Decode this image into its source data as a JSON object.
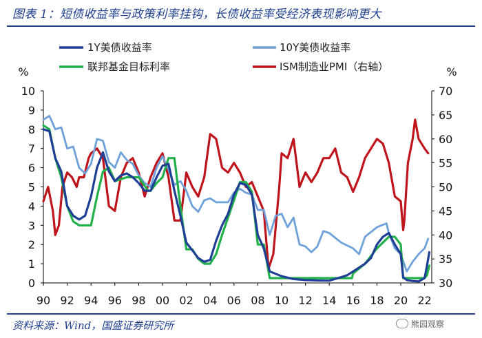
{
  "header": {
    "title": "图表 1：短债收益率与政策利率挂钩，长债收益率受经济表现影响更大"
  },
  "footer": {
    "source": "资料来源：Wind，国盛证券研究所",
    "watermark": "熊园观察"
  },
  "colors": {
    "y1": "#1e3f95",
    "y10": "#6ea1d9",
    "policy": "#22b04a",
    "ism": "#c0141c",
    "brand": "#1f3f8f"
  },
  "chart_data": {
    "type": "line",
    "x_tick_labels": [
      "90",
      "92",
      "94",
      "96",
      "98",
      "00",
      "02",
      "04",
      "06",
      "08",
      "10",
      "12",
      "14",
      "16",
      "18",
      "20",
      "22"
    ],
    "x_range": [
      1990,
      2022.6
    ],
    "left_axis": {
      "label": "%",
      "ticks": [
        "0",
        "1",
        "2",
        "3",
        "4",
        "5",
        "6",
        "7",
        "8",
        "9",
        "10"
      ],
      "ylim": [
        0,
        10
      ]
    },
    "right_axis": {
      "label": "%",
      "ticks": [
        "30",
        "35",
        "40",
        "45",
        "50",
        "55",
        "60",
        "65",
        "70"
      ],
      "ylim": [
        30,
        70
      ]
    },
    "legend": {
      "y1": "1Y美债收益率",
      "y10": "10Y美债收益率",
      "policy": "联邦基金目标利率",
      "ism": "ISM制造业PMI（右轴）"
    },
    "series": [
      {
        "key": "y1",
        "name": "1Y美债收益率",
        "axis": "left",
        "width": 3.2,
        "x": [
          1990,
          1990.5,
          1991,
          1991.5,
          1992,
          1992.5,
          1993,
          1993.5,
          1994,
          1994.5,
          1995,
          1995.5,
          1996,
          1996.5,
          1997,
          1997.5,
          1998,
          1998.5,
          1999,
          1999.5,
          2000,
          2000.5,
          2001,
          2001.5,
          2002,
          2002.5,
          2003,
          2003.5,
          2004,
          2004.5,
          2005,
          2005.5,
          2006,
          2006.5,
          2007,
          2007.5,
          2008,
          2008.5,
          2009,
          2010,
          2011,
          2012,
          2013,
          2014,
          2015,
          2015.5,
          2016,
          2016.5,
          2017,
          2017.5,
          2018,
          2018.5,
          2019,
          2019.5,
          2020,
          2020.2,
          2020.5,
          2021,
          2021.5,
          2022,
          2022.2,
          2022.4
        ],
        "y": [
          8.0,
          7.9,
          6.5,
          5.8,
          4.0,
          3.5,
          3.3,
          3.5,
          4.5,
          6.0,
          6.8,
          5.8,
          5.3,
          5.6,
          5.7,
          5.5,
          5.2,
          4.8,
          4.8,
          5.5,
          6.1,
          6.2,
          4.8,
          3.5,
          2.1,
          1.7,
          1.3,
          1.1,
          1.2,
          2.2,
          3.0,
          3.6,
          4.6,
          5.2,
          5.1,
          4.6,
          2.5,
          1.8,
          0.6,
          0.35,
          0.2,
          0.15,
          0.13,
          0.12,
          0.3,
          0.4,
          0.6,
          0.8,
          1.0,
          1.3,
          2.0,
          2.4,
          2.6,
          2.0,
          1.5,
          0.3,
          0.15,
          0.1,
          0.08,
          0.25,
          0.9,
          1.6
        ]
      },
      {
        "key": "y10",
        "name": "10Y美债收益率",
        "axis": "left",
        "width": 2.8,
        "x": [
          1990,
          1990.5,
          1991,
          1991.5,
          1992,
          1992.5,
          1993,
          1993.5,
          1994,
          1994.5,
          1995,
          1995.5,
          1996,
          1996.5,
          1997,
          1997.5,
          1998,
          1998.5,
          1999,
          1999.5,
          2000,
          2000.5,
          2001,
          2001.5,
          2002,
          2002.5,
          2003,
          2003.5,
          2004,
          2004.5,
          2005,
          2005.5,
          2006,
          2006.5,
          2007,
          2007.5,
          2008,
          2008.5,
          2009,
          2009.5,
          2010,
          2010.5,
          2011,
          2011.5,
          2012,
          2012.5,
          2013,
          2013.5,
          2014,
          2015,
          2016,
          2016.5,
          2017,
          2018,
          2018.8,
          2019,
          2019.5,
          2020,
          2020.5,
          2021,
          2021.5,
          2022,
          2022.3
        ],
        "y": [
          8.5,
          8.7,
          8.0,
          8.1,
          7.0,
          7.1,
          6.0,
          5.7,
          6.2,
          7.5,
          7.4,
          6.3,
          6.0,
          6.8,
          6.4,
          6.2,
          5.6,
          5.2,
          5.0,
          6.0,
          6.6,
          5.9,
          5.1,
          5.3,
          4.8,
          4.0,
          3.7,
          4.3,
          4.4,
          4.2,
          4.2,
          4.2,
          4.7,
          4.9,
          4.7,
          4.6,
          3.8,
          3.8,
          2.5,
          3.5,
          3.6,
          2.9,
          3.4,
          2.0,
          1.9,
          1.6,
          1.9,
          2.7,
          2.6,
          2.1,
          1.8,
          1.5,
          2.4,
          2.9,
          3.1,
          2.6,
          1.8,
          1.5,
          0.6,
          1.1,
          1.5,
          1.8,
          2.3
        ]
      },
      {
        "key": "policy",
        "name": "联邦基金目标利率",
        "axis": "left",
        "width": 3.2,
        "x": [
          1990,
          1990.5,
          1991,
          1991.5,
          1992,
          1992.5,
          1993,
          1994,
          1994.5,
          1995,
          1995.5,
          1996,
          1997,
          1998,
          1998.8,
          1999,
          1999.5,
          2000,
          2000.5,
          2001,
          2001.5,
          2002,
          2002.5,
          2003,
          2003.5,
          2004,
          2004.5,
          2005,
          2006,
          2006.5,
          2007,
          2007.5,
          2008,
          2008.5,
          2009,
          2010,
          2012,
          2014,
          2015.9,
          2016,
          2017,
          2018,
          2019,
          2019.5,
          2020,
          2020.2,
          2021,
          2022,
          2022.2,
          2022.4
        ],
        "y": [
          8.2,
          8.0,
          6.5,
          5.5,
          4.0,
          3.2,
          3.0,
          3.0,
          4.5,
          5.8,
          6.0,
          5.3,
          5.5,
          5.5,
          4.8,
          4.8,
          5.2,
          5.5,
          6.5,
          6.5,
          4.0,
          1.75,
          1.75,
          1.25,
          1.0,
          1.0,
          1.5,
          2.5,
          4.3,
          5.25,
          5.25,
          4.75,
          2.0,
          2.0,
          0.25,
          0.25,
          0.25,
          0.25,
          0.25,
          0.5,
          1.0,
          1.8,
          2.4,
          2.4,
          2.0,
          0.25,
          0.25,
          0.25,
          0.4,
          0.9
        ]
      },
      {
        "key": "ism",
        "name": "ISM制造业PMI（右轴）",
        "axis": "right",
        "width": 3.2,
        "x": [
          1990,
          1990.4,
          1990.8,
          1991,
          1991.3,
          1991.6,
          1992,
          1992.4,
          1992.8,
          1993,
          1993.4,
          1993.8,
          1994,
          1994.5,
          1995,
          1995.5,
          1996,
          1996.5,
          1997,
          1997.5,
          1998,
          1998.5,
          1999,
          1999.5,
          2000,
          2000.5,
          2001,
          2001.5,
          2002,
          2002.5,
          2003,
          2003.5,
          2004,
          2004.5,
          2005,
          2005.5,
          2006,
          2006.5,
          2007,
          2007.5,
          2008,
          2008.5,
          2008.9,
          2009.3,
          2009.8,
          2010,
          2010.5,
          2011,
          2011.5,
          2012,
          2012.5,
          2013,
          2013.5,
          2014,
          2014.5,
          2015,
          2015.5,
          2016,
          2016.5,
          2017,
          2017.5,
          2018,
          2018.5,
          2019,
          2019.5,
          2020,
          2020.2,
          2020.3,
          2020.6,
          2021,
          2021.2,
          2021.5,
          2022,
          2022.3
        ],
        "y": [
          47,
          50,
          45,
          40,
          42,
          50,
          53,
          52,
          50,
          52,
          52,
          56,
          57,
          58,
          56,
          46,
          45,
          52,
          55,
          56,
          53,
          48,
          52,
          55,
          57,
          52,
          43,
          43,
          53,
          50,
          48,
          52,
          61,
          60,
          54,
          53,
          55,
          53,
          50,
          51,
          48,
          45,
          33,
          36,
          50,
          57,
          56,
          60,
          50,
          53,
          51,
          53,
          56,
          56,
          58,
          53,
          52,
          49,
          52,
          56,
          58,
          60,
          59,
          55,
          48,
          47,
          41,
          43,
          55,
          60,
          64,
          60,
          58,
          57
        ]
      }
    ]
  }
}
